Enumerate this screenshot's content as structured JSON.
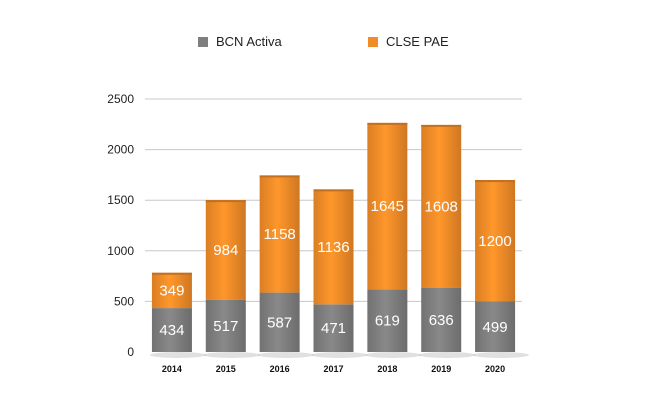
{
  "chart_data": {
    "type": "bar",
    "stacked": true,
    "title": "",
    "xlabel": "",
    "ylabel": "",
    "categories": [
      "2014",
      "2015",
      "2016",
      "2017",
      "2018",
      "2019",
      "2020"
    ],
    "series": [
      {
        "name": "BCN Activa",
        "color": "#7f7f7f",
        "values": [
          434,
          517,
          587,
          471,
          619,
          636,
          499
        ]
      },
      {
        "name": "CLSE PAE",
        "color": "#f28c28",
        "values": [
          349,
          984,
          1158,
          1136,
          1645,
          1608,
          1200
        ]
      }
    ],
    "ylim": [
      0,
      2500
    ],
    "yticks": [
      0,
      500,
      1000,
      1500,
      2000,
      2500
    ],
    "grid": true,
    "legend_position": "top"
  }
}
